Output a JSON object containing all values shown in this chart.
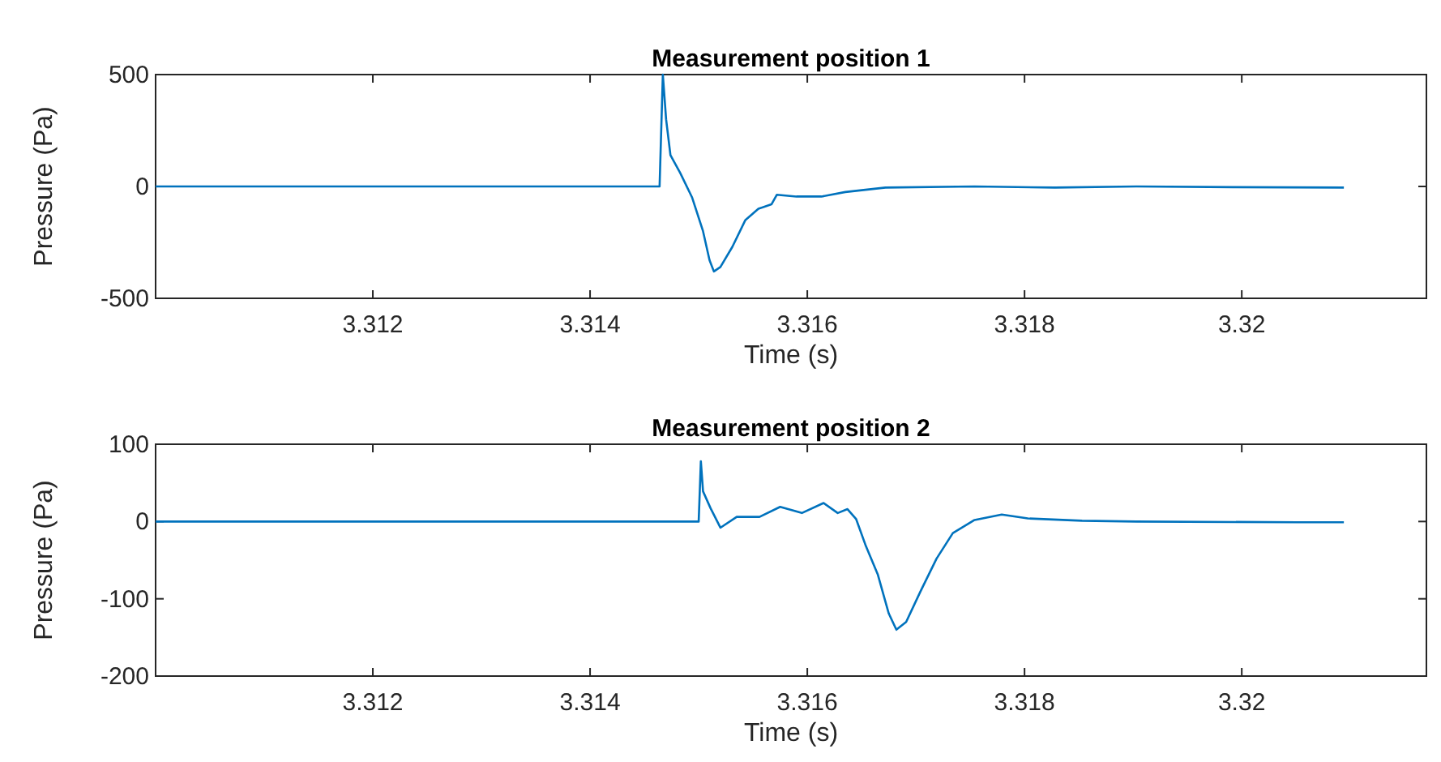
{
  "chart_data": [
    {
      "type": "line",
      "title": "Measurement position 1",
      "xlabel": "Time (s)",
      "ylabel": "Pressure (Pa)",
      "xlim": [
        3.31,
        3.3217
      ],
      "xticks": [
        3.312,
        3.314,
        3.316,
        3.318,
        3.32
      ],
      "ylim": [
        -500,
        500
      ],
      "yticks": [
        -500,
        0,
        500
      ],
      "series": [
        {
          "color": "#0072bd",
          "x": [
            3.31,
            3.31464,
            3.31467,
            3.3147,
            3.31474,
            3.31483,
            3.31494,
            3.31504,
            3.3151,
            3.31514,
            3.3152,
            3.31531,
            3.31543,
            3.31555,
            3.31567,
            3.31572,
            3.3159,
            3.31613,
            3.31635,
            3.31672,
            3.31754,
            3.31828,
            3.31903,
            3.31992,
            3.32094
          ],
          "values": [
            0,
            0,
            500,
            300,
            140,
            60,
            -50,
            -200,
            -330,
            -380,
            -360,
            -270,
            -150,
            -100,
            -80,
            -37,
            -45,
            -45,
            -25,
            -5,
            0,
            -5,
            0,
            -3,
            -5
          ]
        }
      ]
    },
    {
      "type": "line",
      "title": "Measurement position 2",
      "xlabel": "Time (s)",
      "ylabel": "Pressure (Pa)",
      "xlim": [
        3.31,
        3.3217
      ],
      "xticks": [
        3.312,
        3.314,
        3.316,
        3.318,
        3.32
      ],
      "ylim": [
        -200,
        100
      ],
      "yticks": [
        -200,
        -100,
        0,
        100
      ],
      "series": [
        {
          "color": "#0072bd",
          "x": [
            3.31,
            3.315,
            3.31502,
            3.31504,
            3.31511,
            3.3152,
            3.31535,
            3.31556,
            3.31575,
            3.31595,
            3.31615,
            3.31628,
            3.31637,
            3.31645,
            3.31654,
            3.31665,
            3.31675,
            3.31682,
            3.31691,
            3.31704,
            3.31719,
            3.31734,
            3.31754,
            3.31779,
            3.31803,
            3.31853,
            3.31903,
            3.32051,
            3.32094
          ],
          "values": [
            0,
            0,
            78,
            39,
            17,
            -8,
            6,
            6,
            19,
            11,
            24,
            11,
            16,
            3,
            -32,
            -69,
            -119,
            -140,
            -130,
            -91,
            -48,
            -15,
            2,
            9,
            4,
            1,
            0,
            -1,
            -1
          ]
        }
      ]
    }
  ]
}
